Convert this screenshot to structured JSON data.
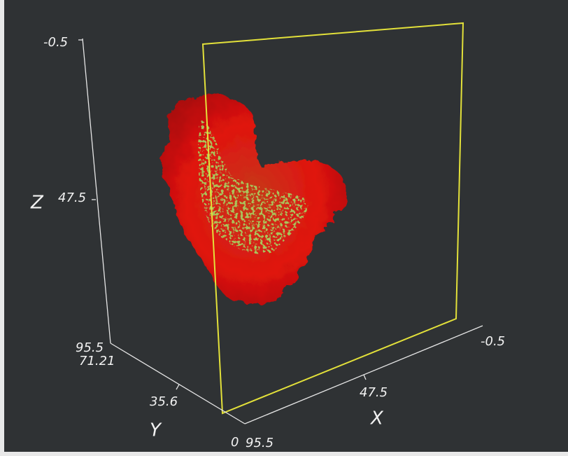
{
  "axes": {
    "z": {
      "label": "Z",
      "ticks": [
        "-0.5",
        "47.5",
        "95.5"
      ]
    },
    "y": {
      "label": "Y",
      "ticks": [
        "71.21",
        "35.6",
        "0"
      ]
    },
    "x": {
      "label": "X",
      "ticks": [
        "95.5",
        "47.5",
        "-0.5"
      ]
    }
  }
}
